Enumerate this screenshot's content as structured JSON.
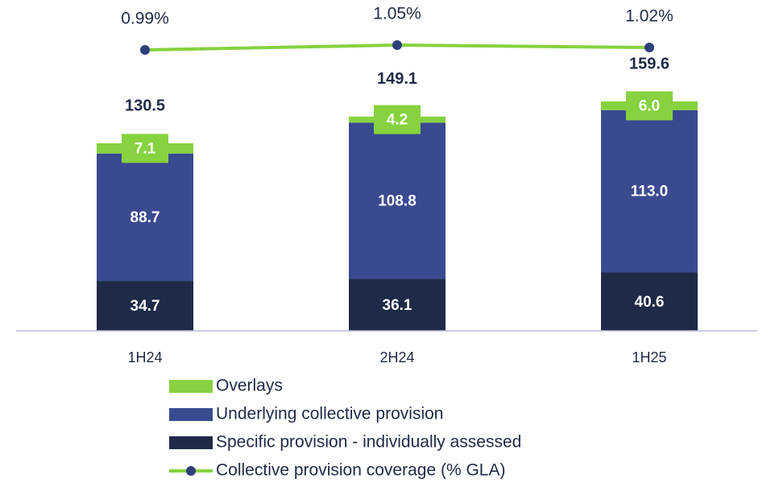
{
  "chart_data": {
    "type": "bar",
    "categories": [
      "1H24",
      "2H24",
      "1H25"
    ],
    "stacked": true,
    "series": [
      {
        "name": "Specific provision - individually assessed",
        "color": "#1f2a48",
        "values": [
          34.7,
          36.1,
          40.6
        ],
        "value_labels": [
          "34.7",
          "36.1",
          "40.6"
        ]
      },
      {
        "name": "Underlying collective provision",
        "color": "#394a91",
        "values": [
          88.7,
          108.8,
          113.0
        ],
        "value_labels": [
          "88.7",
          "108.8",
          "113.0"
        ]
      },
      {
        "name": "Overlays",
        "color": "#86d23f",
        "values": [
          7.1,
          4.2,
          6.0
        ],
        "value_labels": [
          "7.1",
          "4.2",
          "6.0"
        ]
      },
      {
        "name": "Collective provision coverage (% GLA)",
        "type": "line",
        "axis": "y2",
        "color": "#86d23f",
        "marker_color": "#2f3f7a",
        "values": [
          0.99,
          1.05,
          1.02
        ],
        "value_labels": [
          "0.99%",
          "1.05%",
          "1.02%"
        ]
      }
    ],
    "totals": [
      130.5,
      149.1,
      159.6
    ],
    "ylim": [
      0,
      219
    ],
    "y2lim": [
      -2.5,
      1.41
    ]
  }
}
